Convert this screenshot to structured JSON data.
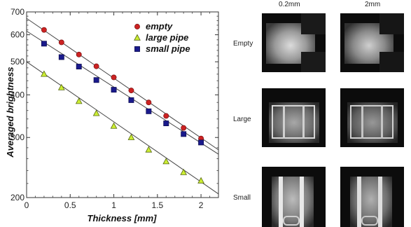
{
  "chart_data": {
    "type": "scatter",
    "xlabel": "Thickness [mm]",
    "ylabel": "Averaged brightness",
    "xlim": [
      0,
      2.2
    ],
    "ylim": [
      200,
      700
    ],
    "yscale": "log",
    "x_ticks": [
      0,
      0.5,
      1,
      1.5,
      2
    ],
    "y_ticks": [
      200,
      300,
      400,
      500,
      600,
      700
    ],
    "legend_position": "top-right",
    "series": [
      {
        "name": "empty",
        "color": "#cc2222",
        "marker": "circle",
        "x": [
          0.2,
          0.4,
          0.6,
          0.8,
          1.0,
          1.2,
          1.4,
          1.6,
          1.8,
          2.0
        ],
        "y": [
          620,
          570,
          525,
          485,
          450,
          412,
          380,
          347,
          320,
          298
        ],
        "fit": [
          [
            0,
            670
          ],
          [
            2.2,
            276
          ]
        ]
      },
      {
        "name": "large pipe",
        "color": "#ccee33",
        "marker": "triangle",
        "x": [
          0.2,
          0.4,
          0.6,
          0.8,
          1.0,
          1.2,
          1.4,
          1.6,
          1.8,
          2.0
        ],
        "y": [
          460,
          420,
          383,
          353,
          324,
          300,
          276,
          255,
          237,
          224
        ],
        "fit": [
          [
            0,
            500
          ],
          [
            2.2,
            205
          ]
        ]
      },
      {
        "name": "small pipe",
        "color": "#1a1a8c",
        "marker": "square",
        "x": [
          0.2,
          0.4,
          0.6,
          0.8,
          1.0,
          1.2,
          1.4,
          1.6,
          1.8,
          2.0
        ],
        "y": [
          565,
          516,
          484,
          442,
          414,
          386,
          358,
          330,
          307,
          290
        ],
        "fit": [
          [
            0,
            615
          ],
          [
            2.2,
            268
          ]
        ]
      }
    ]
  },
  "image_grid": {
    "columns": [
      "0.2mm",
      "2mm"
    ],
    "rows": [
      "Empty",
      "Large",
      "Small"
    ]
  }
}
